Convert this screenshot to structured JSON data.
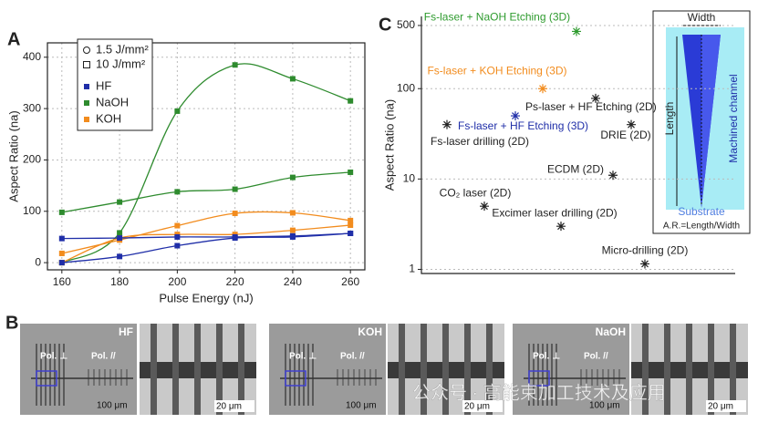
{
  "chart_data": [
    {
      "type": "line",
      "panel": "A",
      "xlabel": "Pulse Energy (nJ)",
      "ylabel": "Aspect Ratio (na)",
      "x": [
        160,
        180,
        200,
        220,
        240,
        260
      ],
      "xlim": [
        155,
        265
      ],
      "xticks": [
        160,
        180,
        200,
        220,
        240,
        260
      ],
      "ylim": [
        -14,
        428
      ],
      "yticks": [
        0,
        100,
        200,
        300,
        400
      ],
      "grid": true,
      "legend": {
        "fluences": [
          "1.5 J/mm²",
          "10 J/mm²"
        ],
        "etchants": [
          {
            "name": "HF",
            "color": "#1f2ea8"
          },
          {
            "name": "NaOH",
            "color": "#2e8b2e"
          },
          {
            "name": "KOH",
            "color": "#f28c1e"
          }
        ]
      },
      "series": [
        {
          "etchant": 1,
          "fluence": 0,
          "values": [
            0,
            58,
            295,
            385,
            358,
            315
          ]
        },
        {
          "etchant": 1,
          "fluence": 1,
          "values": [
            98,
            118,
            138,
            143,
            166,
            176
          ]
        },
        {
          "etchant": 2,
          "fluence": 0,
          "values": [
            18,
            44,
            72,
            96,
            97,
            82
          ]
        },
        {
          "etchant": 2,
          "fluence": 1,
          "values": [
            0,
            48,
            55,
            55,
            63,
            73
          ]
        },
        {
          "etchant": 0,
          "fluence": 0,
          "values": [
            0,
            12,
            33,
            48,
            50,
            57
          ]
        },
        {
          "etchant": 0,
          "fluence": 1,
          "values": [
            47,
            48,
            50,
            50,
            52,
            57
          ]
        }
      ]
    },
    {
      "type": "scatter",
      "panel": "C",
      "ylabel": "Aspect Ratio (na)",
      "log_y": true,
      "ylim": [
        0.9,
        630
      ],
      "yticks": [
        1,
        10,
        100,
        500
      ],
      "grid": true,
      "labels": [
        "Fs-laser + NaOH Etching (3D)",
        "Fs-laser + KOH Etching (3D)",
        "Ps-laser + HF Etching (2D)",
        "Fs-laser + HF Etching (3D)",
        "Fs-laser drilling (2D)",
        "DRIE (2D)",
        "ECDM (2D)",
        "CO₂ laser (2D)",
        "Excimer laser drilling (2D)",
        "Micro-drilling (2D)"
      ],
      "values": [
        430,
        100,
        78,
        50,
        40,
        40,
        11,
        5,
        3,
        1.15
      ],
      "colors": [
        "#2e9b2e",
        "#f28c1e",
        "#222222",
        "#1f2ea8",
        "#222222",
        "#222222",
        "#222222",
        "#222222",
        "#222222",
        "#222222"
      ]
    }
  ],
  "inset": {
    "width": "Width",
    "length": "Length",
    "channel": "Machined channel",
    "substrate": "Substrate",
    "formula": "A.R.=Length/Width"
  },
  "figure_b": {
    "panel": "B",
    "groups": [
      {
        "etchant": "HF",
        "pol_perp": "Pol. ⊥",
        "pol_par": "Pol. //",
        "scale_low": "100 μm",
        "scale_high": "20 μm"
      },
      {
        "etchant": "KOH",
        "pol_perp": "Pol. ⊥",
        "pol_par": "Pol. //",
        "scale_low": "100 μm",
        "scale_high": "20 μm"
      },
      {
        "etchant": "NaOH",
        "pol_perp": "Pol. ⊥",
        "pol_par": "Pol. //",
        "scale_low": "100 μm",
        "scale_high": "20 μm"
      }
    ]
  },
  "watermark": "公众号 · 高能束加工技术及应用"
}
